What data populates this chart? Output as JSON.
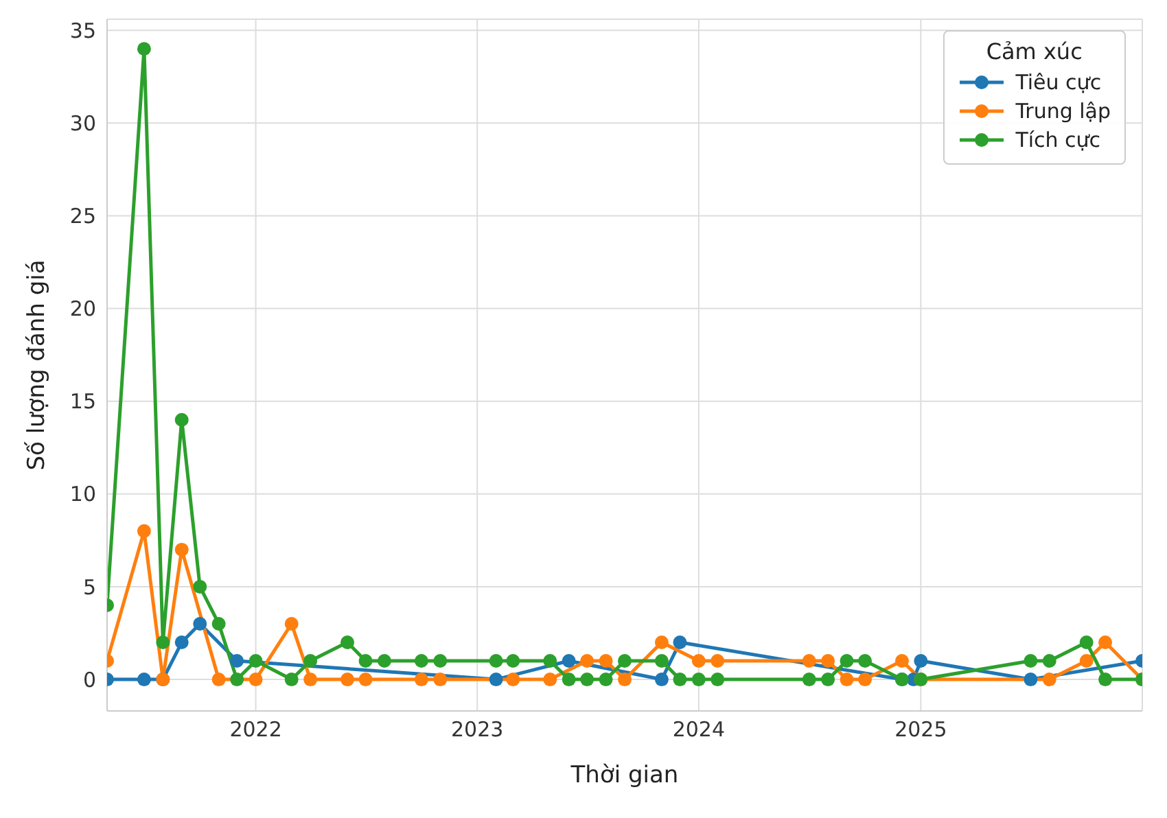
{
  "chart_data": {
    "type": "line",
    "xlabel": "Thời gian",
    "ylabel": "Số lượng đánh giá",
    "legend_title": "Cảm xúc",
    "legend": "top right",
    "grid": true,
    "marker": "circle",
    "line_style": "solid",
    "xlim": [
      "2021-05",
      "2026-01"
    ],
    "xticks": [
      "2022",
      "2023",
      "2024",
      "2025"
    ],
    "ylim": [
      -1.7,
      35.6
    ],
    "yticks": [
      0,
      5,
      10,
      15,
      20,
      25,
      30,
      35
    ],
    "series": [
      {
        "name": "Tiêu cực",
        "color": "#1f77b4",
        "x": [
          "2021-05",
          "2021-07",
          "2021-08",
          "2021-09",
          "2021-10",
          "2021-12",
          "2023-02",
          "2023-06",
          "2023-11",
          "2023-12",
          "2024-12",
          "2024-12-20",
          "2025-01",
          "2025-07",
          "2026-01"
        ],
        "values": [
          0,
          0,
          0,
          2,
          3,
          1,
          0,
          1,
          0,
          2,
          0,
          0,
          1,
          0,
          1
        ]
      },
      {
        "name": "Trung lập",
        "color": "#ff7f0e",
        "x": [
          "2021-05",
          "2021-07",
          "2021-08",
          "2021-09",
          "2021-11",
          "2022-01",
          "2022-03",
          "2022-04",
          "2022-06",
          "2022-07",
          "2022-10",
          "2022-11",
          "2023-03",
          "2023-05",
          "2023-07",
          "2023-08",
          "2023-09",
          "2023-11",
          "2024-01",
          "2024-02",
          "2024-07",
          "2024-08",
          "2024-09",
          "2024-10",
          "2024-12",
          "2025-01",
          "2025-08",
          "2025-10",
          "2025-11",
          "2026-01"
        ],
        "values": [
          1,
          8,
          0,
          7,
          0,
          0,
          3,
          0,
          0,
          0,
          0,
          0,
          0,
          0,
          1,
          1,
          0,
          2,
          1,
          1,
          1,
          1,
          0,
          0,
          1,
          0,
          0,
          1,
          2,
          0
        ]
      },
      {
        "name": "Tích cực",
        "color": "#2ca02c",
        "x": [
          "2021-05",
          "2021-07",
          "2021-08",
          "2021-09",
          "2021-10",
          "2021-11",
          "2021-12",
          "2022-01",
          "2022-03",
          "2022-04",
          "2022-06",
          "2022-07",
          "2022-08",
          "2022-10",
          "2022-11",
          "2023-02",
          "2023-03",
          "2023-05",
          "2023-06",
          "2023-07",
          "2023-08",
          "2023-09",
          "2023-11",
          "2023-12",
          "2024-01",
          "2024-02",
          "2024-07",
          "2024-08",
          "2024-09",
          "2024-10",
          "2024-12",
          "2025-01",
          "2025-07",
          "2025-08",
          "2025-10",
          "2025-11",
          "2026-01"
        ],
        "values": [
          4,
          34,
          2,
          14,
          5,
          3,
          0,
          1,
          0,
          1,
          2,
          1,
          1,
          1,
          1,
          1,
          1,
          1,
          0,
          0,
          0,
          1,
          1,
          0,
          0,
          0,
          0,
          0,
          1,
          1,
          0,
          0,
          1,
          1,
          2,
          0,
          0
        ]
      }
    ]
  }
}
